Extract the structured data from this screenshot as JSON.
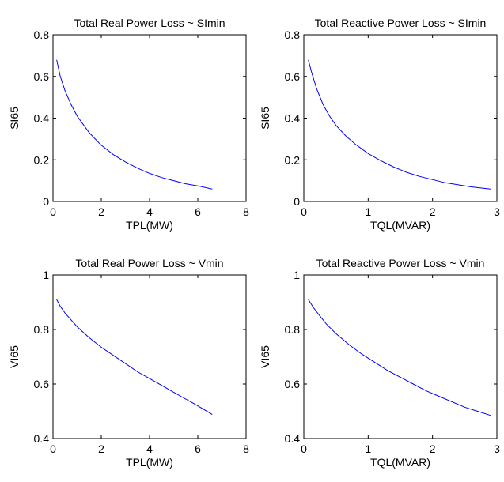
{
  "chart_data": [
    {
      "type": "line",
      "title": "Total Real Power Loss ~ SImin",
      "xlabel": "TPL(MW)",
      "ylabel": "SI65",
      "xlim": [
        0,
        8
      ],
      "ylim": [
        0,
        0.8
      ],
      "xticks": [
        0,
        2,
        4,
        6,
        8
      ],
      "yticks": [
        0,
        0.2,
        0.4,
        0.6,
        0.8
      ],
      "xtick_labels": [
        "0",
        "2",
        "4",
        "6",
        "8"
      ],
      "ytick_labels": [
        "0",
        "0.2",
        "0.4",
        "0.6",
        "0.8"
      ],
      "grid": false,
      "series": [
        {
          "color": "#0000ff",
          "x": [
            0.15,
            0.3,
            0.5,
            0.75,
            1.0,
            1.25,
            1.5,
            2.0,
            2.5,
            3.0,
            3.5,
            4.0,
            4.5,
            5.0,
            5.5,
            6.0,
            6.6
          ],
          "y": [
            0.68,
            0.6,
            0.53,
            0.465,
            0.41,
            0.37,
            0.33,
            0.27,
            0.225,
            0.19,
            0.16,
            0.135,
            0.115,
            0.1,
            0.085,
            0.075,
            0.06
          ]
        }
      ]
    },
    {
      "type": "line",
      "title": "Total Reactive Power Loss ~ SImin",
      "xlabel": "TQL(MVAR)",
      "ylabel": "SI65",
      "xlim": [
        0,
        3
      ],
      "ylim": [
        0,
        0.8
      ],
      "xticks": [
        0,
        1,
        2,
        3
      ],
      "yticks": [
        0,
        0.2,
        0.4,
        0.6,
        0.8
      ],
      "xtick_labels": [
        "0",
        "1",
        "2",
        "3"
      ],
      "ytick_labels": [
        "0",
        "0.2",
        "0.4",
        "0.6",
        "0.8"
      ],
      "grid": false,
      "series": [
        {
          "color": "#0000ff",
          "x": [
            0.07,
            0.12,
            0.2,
            0.3,
            0.4,
            0.5,
            0.65,
            0.8,
            1.0,
            1.2,
            1.4,
            1.6,
            1.8,
            2.0,
            2.2,
            2.4,
            2.6,
            2.9
          ],
          "y": [
            0.68,
            0.62,
            0.54,
            0.465,
            0.41,
            0.365,
            0.315,
            0.275,
            0.23,
            0.195,
            0.165,
            0.14,
            0.12,
            0.105,
            0.09,
            0.08,
            0.07,
            0.06
          ]
        }
      ]
    },
    {
      "type": "line",
      "title": "Total Real Power Loss ~ Vmin",
      "xlabel": "TPL(MW)",
      "ylabel": "VI65",
      "xlim": [
        0,
        8
      ],
      "ylim": [
        0.4,
        1
      ],
      "xticks": [
        0,
        2,
        4,
        6,
        8
      ],
      "yticks": [
        0.4,
        0.6,
        0.8,
        1
      ],
      "xtick_labels": [
        "0",
        "2",
        "4",
        "6",
        "8"
      ],
      "ytick_labels": [
        "0.4",
        "0.6",
        "0.8",
        "1"
      ],
      "grid": false,
      "series": [
        {
          "color": "#0000ff",
          "x": [
            0.15,
            0.3,
            0.5,
            0.75,
            1.0,
            1.5,
            2.0,
            2.5,
            3.0,
            3.5,
            4.0,
            4.5,
            5.0,
            5.5,
            6.0,
            6.6
          ],
          "y": [
            0.91,
            0.885,
            0.86,
            0.835,
            0.81,
            0.77,
            0.735,
            0.705,
            0.675,
            0.645,
            0.62,
            0.595,
            0.57,
            0.545,
            0.52,
            0.488
          ]
        }
      ]
    },
    {
      "type": "line",
      "title": "Total Reactive Power Loss ~ Vmin",
      "xlabel": "TQL(MVAR)",
      "ylabel": "VI65",
      "xlim": [
        0,
        3
      ],
      "ylim": [
        0.4,
        1
      ],
      "xticks": [
        0,
        1,
        2,
        3
      ],
      "yticks": [
        0.4,
        0.6,
        0.8,
        1
      ],
      "xtick_labels": [
        "0",
        "1",
        "2",
        "3"
      ],
      "ytick_labels": [
        "0.4",
        "0.6",
        "0.8",
        "1"
      ],
      "grid": false,
      "series": [
        {
          "color": "#0000ff",
          "x": [
            0.07,
            0.15,
            0.25,
            0.35,
            0.5,
            0.7,
            0.9,
            1.1,
            1.3,
            1.5,
            1.7,
            1.9,
            2.1,
            2.3,
            2.5,
            2.7,
            2.9
          ],
          "y": [
            0.91,
            0.88,
            0.85,
            0.82,
            0.785,
            0.745,
            0.71,
            0.68,
            0.65,
            0.625,
            0.6,
            0.575,
            0.555,
            0.535,
            0.515,
            0.5,
            0.485
          ]
        }
      ]
    }
  ]
}
